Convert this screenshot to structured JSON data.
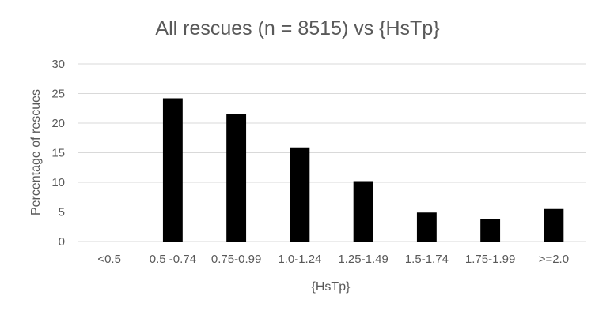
{
  "chart_data": {
    "type": "bar",
    "title": "All rescues (n = 8515) vs {HsTp}",
    "xlabel": "{HsTp}",
    "ylabel": "Percentage of rescues",
    "categories": [
      "<0.5",
      "0.5 -0.74",
      "0.75-0.99",
      "1.0-1.24",
      "1.25-1.49",
      "1.5-1.74",
      "1.75-1.99",
      ">=2.0"
    ],
    "values": [
      0,
      24.2,
      21.5,
      15.9,
      10.2,
      4.9,
      3.8,
      5.5
    ],
    "ylim": [
      0,
      30
    ],
    "yticks": [
      0,
      5,
      10,
      15,
      20,
      25,
      30
    ],
    "grid": true,
    "legend": "none",
    "colors": {
      "bar": "#000000",
      "grid": "#d9d9d9",
      "text": "#595959"
    }
  }
}
